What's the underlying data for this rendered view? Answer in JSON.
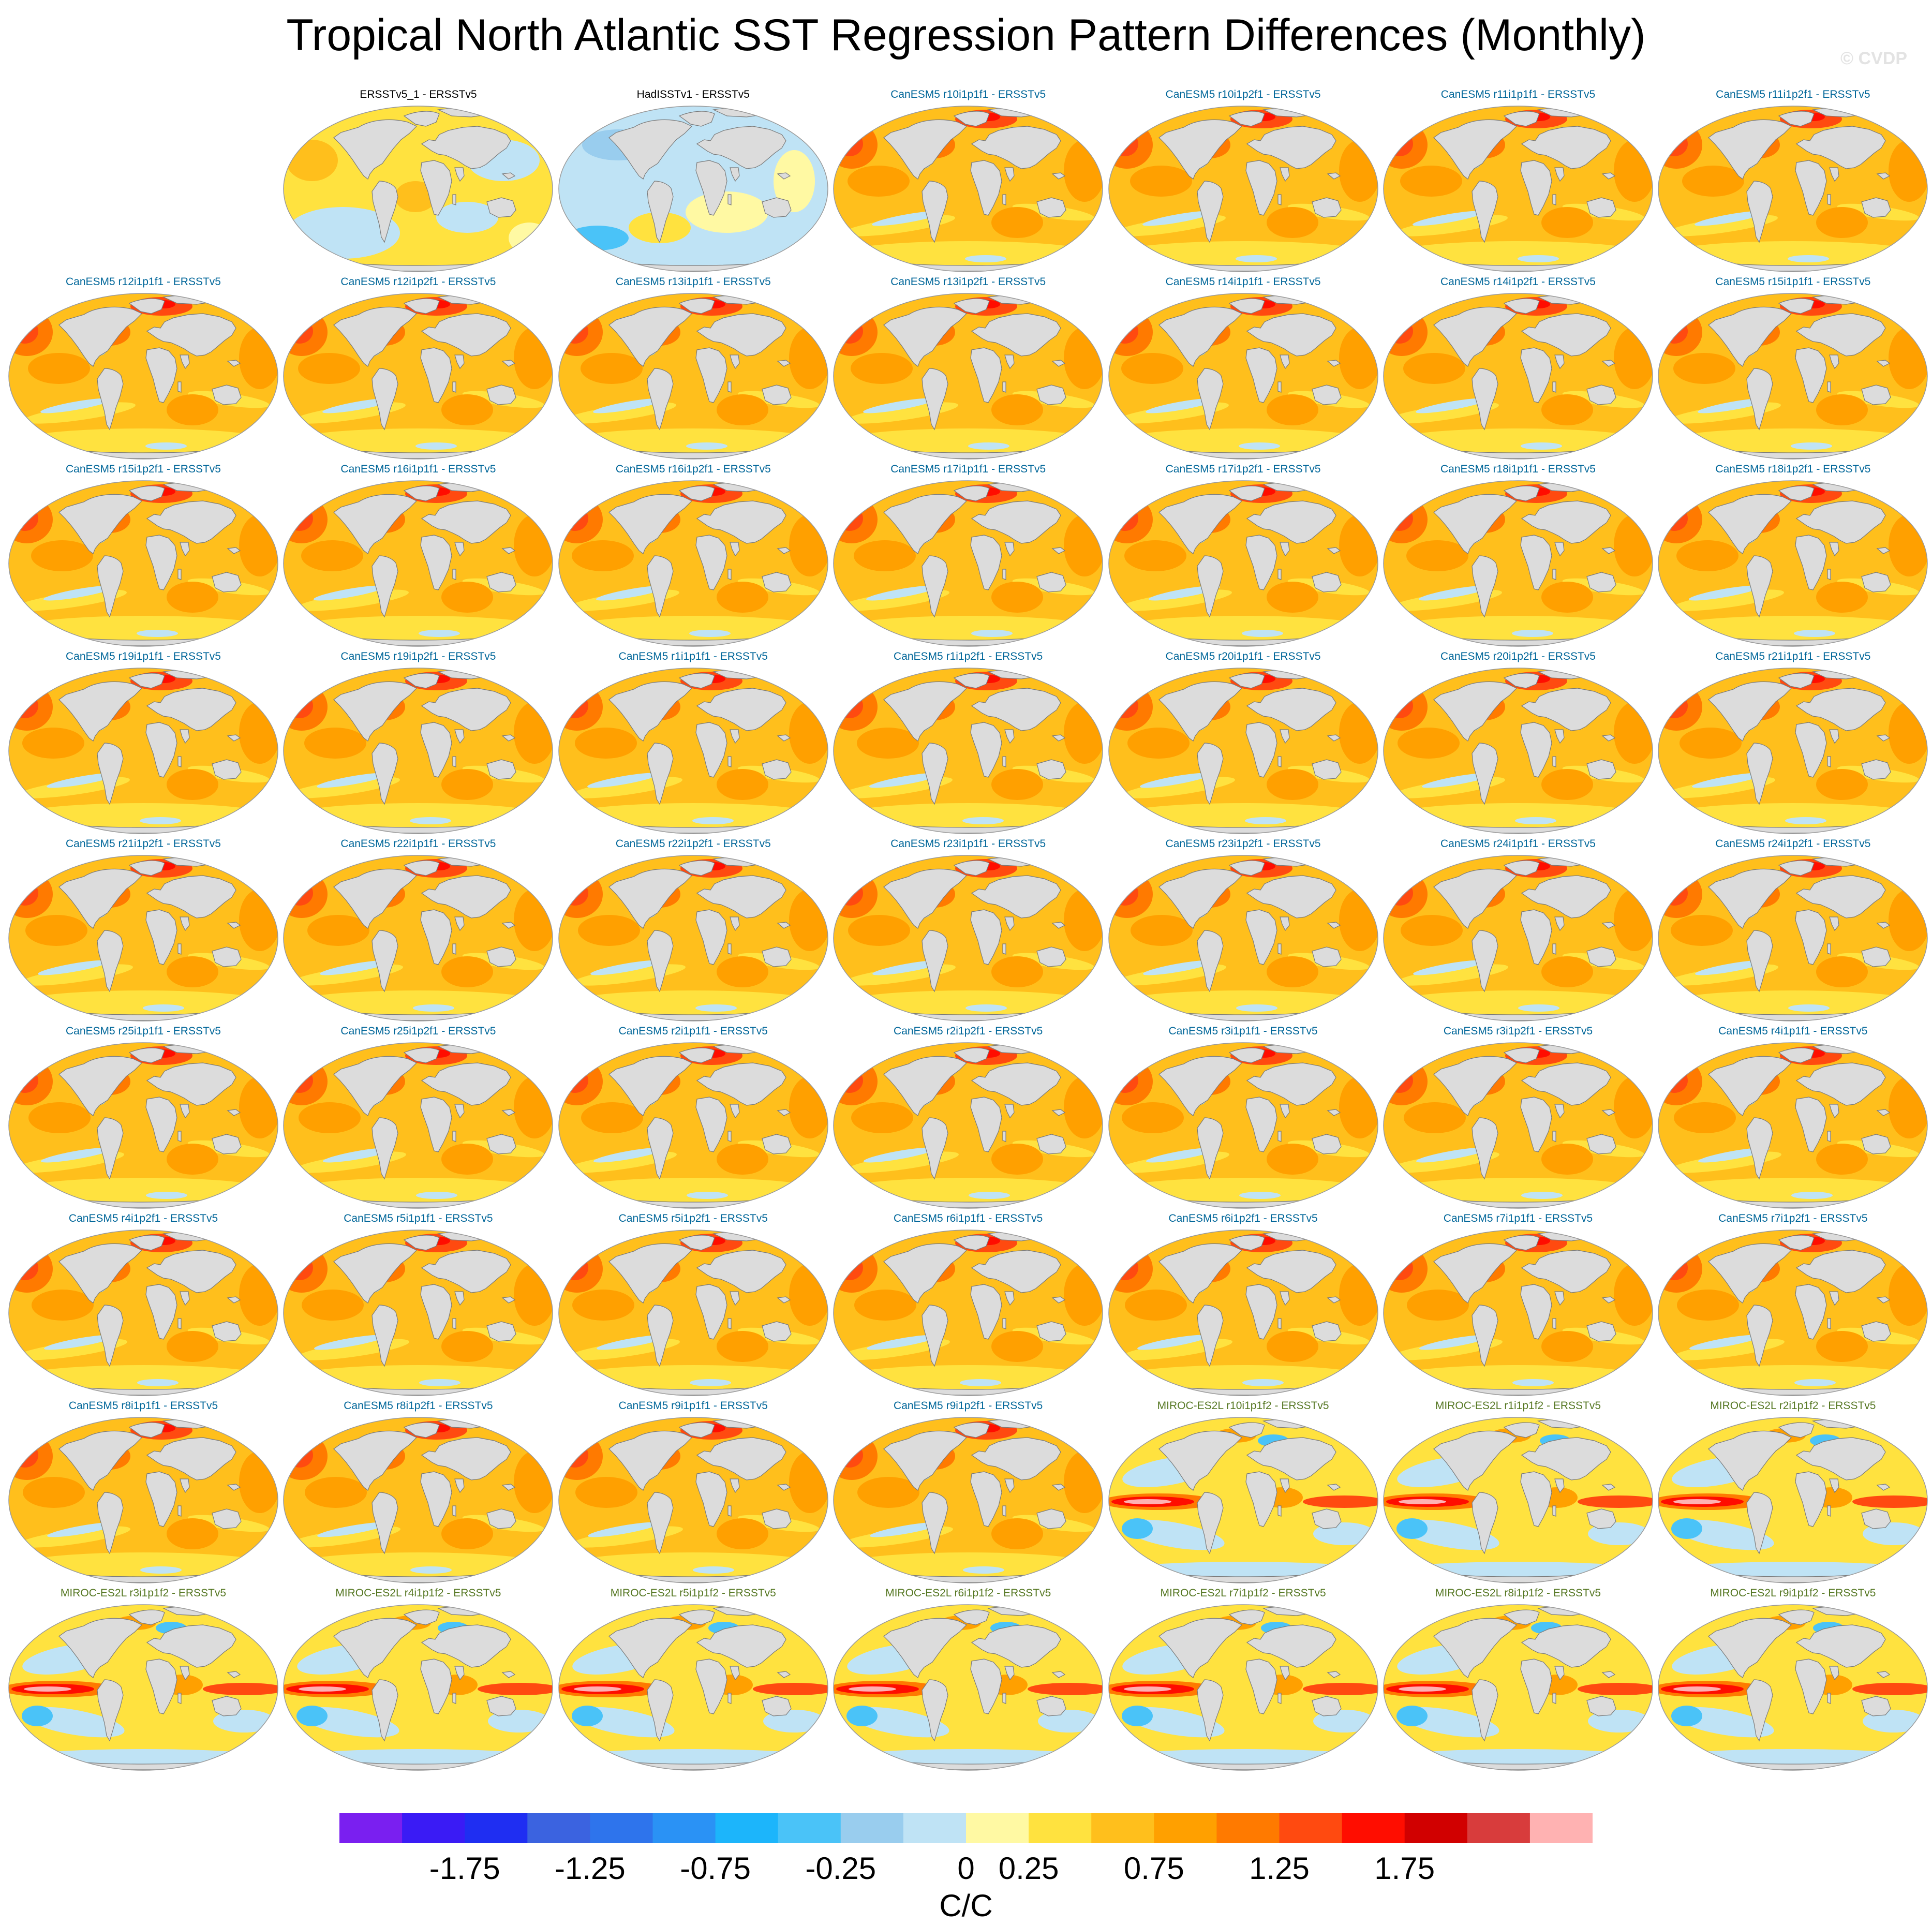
{
  "title": "Tropical North Atlantic SST Regression Pattern Differences (Monthly)",
  "watermark": "© CVDP",
  "colorbar": {
    "colors": [
      "#7a1ff0",
      "#3a1bf5",
      "#1f2ef2",
      "#3b63e0",
      "#2e74ec",
      "#2a92f5",
      "#1cb5fb",
      "#4ac3f8",
      "#99cdee",
      "#bfe3f5",
      "#fff9a3",
      "#ffe23f",
      "#ffbf1c",
      "#ffa000",
      "#ff7a00",
      "#ff4a10",
      "#ff0d00",
      "#d10000",
      "#d83c3c",
      "#ffb2b2"
    ],
    "tick_labels": [
      "-1.75",
      "-1.25",
      "-0.75",
      "-0.25",
      "0",
      "0.25",
      "0.75",
      "1.25",
      "1.75"
    ],
    "units": "C/C"
  },
  "title_colors": {
    "obs": "#000000",
    "canesm5": "#006699",
    "miroc": "#557722"
  },
  "panels": [
    {
      "label": "ERSSTv5_1 - ERSSTv5",
      "group": "obs",
      "style": "obs1"
    },
    {
      "label": "HadISSTv1 - ERSSTv5",
      "group": "obs",
      "style": "obs2"
    },
    {
      "label": "CanESM5 r10i1p1f1 - ERSSTv5",
      "group": "canesm5",
      "style": "can"
    },
    {
      "label": "CanESM5 r10i1p2f1 - ERSSTv5",
      "group": "canesm5",
      "style": "can"
    },
    {
      "label": "CanESM5 r11i1p1f1 - ERSSTv5",
      "group": "canesm5",
      "style": "can"
    },
    {
      "label": "CanESM5 r11i1p2f1 - ERSSTv5",
      "group": "canesm5",
      "style": "can"
    },
    {
      "label": "CanESM5 r12i1p1f1 - ERSSTv5",
      "group": "canesm5",
      "style": "can"
    },
    {
      "label": "CanESM5 r12i1p2f1 - ERSSTv5",
      "group": "canesm5",
      "style": "can"
    },
    {
      "label": "CanESM5 r13i1p1f1 - ERSSTv5",
      "group": "canesm5",
      "style": "can"
    },
    {
      "label": "CanESM5 r13i1p2f1 - ERSSTv5",
      "group": "canesm5",
      "style": "can"
    },
    {
      "label": "CanESM5 r14i1p1f1 - ERSSTv5",
      "group": "canesm5",
      "style": "can"
    },
    {
      "label": "CanESM5 r14i1p2f1 - ERSSTv5",
      "group": "canesm5",
      "style": "can"
    },
    {
      "label": "CanESM5 r15i1p1f1 - ERSSTv5",
      "group": "canesm5",
      "style": "can"
    },
    {
      "label": "CanESM5 r15i1p2f1 - ERSSTv5",
      "group": "canesm5",
      "style": "can"
    },
    {
      "label": "CanESM5 r16i1p1f1 - ERSSTv5",
      "group": "canesm5",
      "style": "can"
    },
    {
      "label": "CanESM5 r16i1p2f1 - ERSSTv5",
      "group": "canesm5",
      "style": "can"
    },
    {
      "label": "CanESM5 r17i1p1f1 - ERSSTv5",
      "group": "canesm5",
      "style": "can"
    },
    {
      "label": "CanESM5 r17i1p2f1 - ERSSTv5",
      "group": "canesm5",
      "style": "can"
    },
    {
      "label": "CanESM5 r18i1p1f1 - ERSSTv5",
      "group": "canesm5",
      "style": "can"
    },
    {
      "label": "CanESM5 r18i1p2f1 - ERSSTv5",
      "group": "canesm5",
      "style": "can"
    },
    {
      "label": "CanESM5 r19i1p1f1 - ERSSTv5",
      "group": "canesm5",
      "style": "can"
    },
    {
      "label": "CanESM5 r19i1p2f1 - ERSSTv5",
      "group": "canesm5",
      "style": "can"
    },
    {
      "label": "CanESM5 r1i1p1f1 - ERSSTv5",
      "group": "canesm5",
      "style": "can"
    },
    {
      "label": "CanESM5 r1i1p2f1 - ERSSTv5",
      "group": "canesm5",
      "style": "can"
    },
    {
      "label": "CanESM5 r20i1p1f1 - ERSSTv5",
      "group": "canesm5",
      "style": "can"
    },
    {
      "label": "CanESM5 r20i1p2f1 - ERSSTv5",
      "group": "canesm5",
      "style": "can"
    },
    {
      "label": "CanESM5 r21i1p1f1 - ERSSTv5",
      "group": "canesm5",
      "style": "can"
    },
    {
      "label": "CanESM5 r21i1p2f1 - ERSSTv5",
      "group": "canesm5",
      "style": "can"
    },
    {
      "label": "CanESM5 r22i1p1f1 - ERSSTv5",
      "group": "canesm5",
      "style": "can"
    },
    {
      "label": "CanESM5 r22i1p2f1 - ERSSTv5",
      "group": "canesm5",
      "style": "can"
    },
    {
      "label": "CanESM5 r23i1p1f1 - ERSSTv5",
      "group": "canesm5",
      "style": "can"
    },
    {
      "label": "CanESM5 r23i1p2f1 - ERSSTv5",
      "group": "canesm5",
      "style": "can"
    },
    {
      "label": "CanESM5 r24i1p1f1 - ERSSTv5",
      "group": "canesm5",
      "style": "can"
    },
    {
      "label": "CanESM5 r24i1p2f1 - ERSSTv5",
      "group": "canesm5",
      "style": "can"
    },
    {
      "label": "CanESM5 r25i1p1f1 - ERSSTv5",
      "group": "canesm5",
      "style": "can"
    },
    {
      "label": "CanESM5 r25i1p2f1 - ERSSTv5",
      "group": "canesm5",
      "style": "can"
    },
    {
      "label": "CanESM5 r2i1p1f1 - ERSSTv5",
      "group": "canesm5",
      "style": "can"
    },
    {
      "label": "CanESM5 r2i1p2f1 - ERSSTv5",
      "group": "canesm5",
      "style": "can"
    },
    {
      "label": "CanESM5 r3i1p1f1 - ERSSTv5",
      "group": "canesm5",
      "style": "can"
    },
    {
      "label": "CanESM5 r3i1p2f1 - ERSSTv5",
      "group": "canesm5",
      "style": "can"
    },
    {
      "label": "CanESM5 r4i1p1f1 - ERSSTv5",
      "group": "canesm5",
      "style": "can"
    },
    {
      "label": "CanESM5 r4i1p2f1 - ERSSTv5",
      "group": "canesm5",
      "style": "can"
    },
    {
      "label": "CanESM5 r5i1p1f1 - ERSSTv5",
      "group": "canesm5",
      "style": "can"
    },
    {
      "label": "CanESM5 r5i1p2f1 - ERSSTv5",
      "group": "canesm5",
      "style": "can"
    },
    {
      "label": "CanESM5 r6i1p1f1 - ERSSTv5",
      "group": "canesm5",
      "style": "can"
    },
    {
      "label": "CanESM5 r6i1p2f1 - ERSSTv5",
      "group": "canesm5",
      "style": "can"
    },
    {
      "label": "CanESM5 r7i1p1f1 - ERSSTv5",
      "group": "canesm5",
      "style": "can"
    },
    {
      "label": "CanESM5 r7i1p2f1 - ERSSTv5",
      "group": "canesm5",
      "style": "can"
    },
    {
      "label": "CanESM5 r8i1p1f1 - ERSSTv5",
      "group": "canesm5",
      "style": "can"
    },
    {
      "label": "CanESM5 r8i1p2f1 - ERSSTv5",
      "group": "canesm5",
      "style": "can"
    },
    {
      "label": "CanESM5 r9i1p1f1 - ERSSTv5",
      "group": "canesm5",
      "style": "can"
    },
    {
      "label": "CanESM5 r9i1p2f1 - ERSSTv5",
      "group": "canesm5",
      "style": "can"
    },
    {
      "label": "MIROC-ES2L r10i1p1f2 - ERSSTv5",
      "group": "miroc",
      "style": "miroc"
    },
    {
      "label": "MIROC-ES2L r1i1p1f2 - ERSSTv5",
      "group": "miroc",
      "style": "miroc"
    },
    {
      "label": "MIROC-ES2L r2i1p1f2 - ERSSTv5",
      "group": "miroc",
      "style": "miroc"
    },
    {
      "label": "MIROC-ES2L r3i1p1f2 - ERSSTv5",
      "group": "miroc",
      "style": "miroc"
    },
    {
      "label": "MIROC-ES2L r4i1p1f2 - ERSSTv5",
      "group": "miroc",
      "style": "miroc"
    },
    {
      "label": "MIROC-ES2L r5i1p1f2 - ERSSTv5",
      "group": "miroc",
      "style": "miroc"
    },
    {
      "label": "MIROC-ES2L r6i1p1f2 - ERSSTv5",
      "group": "miroc",
      "style": "miroc"
    },
    {
      "label": "MIROC-ES2L r7i1p1f2 - ERSSTv5",
      "group": "miroc",
      "style": "miroc"
    },
    {
      "label": "MIROC-ES2L r8i1p1f2 - ERSSTv5",
      "group": "miroc",
      "style": "miroc"
    },
    {
      "label": "MIROC-ES2L r9i1p1f2 - ERSSTv5",
      "group": "miroc",
      "style": "miroc"
    }
  ]
}
